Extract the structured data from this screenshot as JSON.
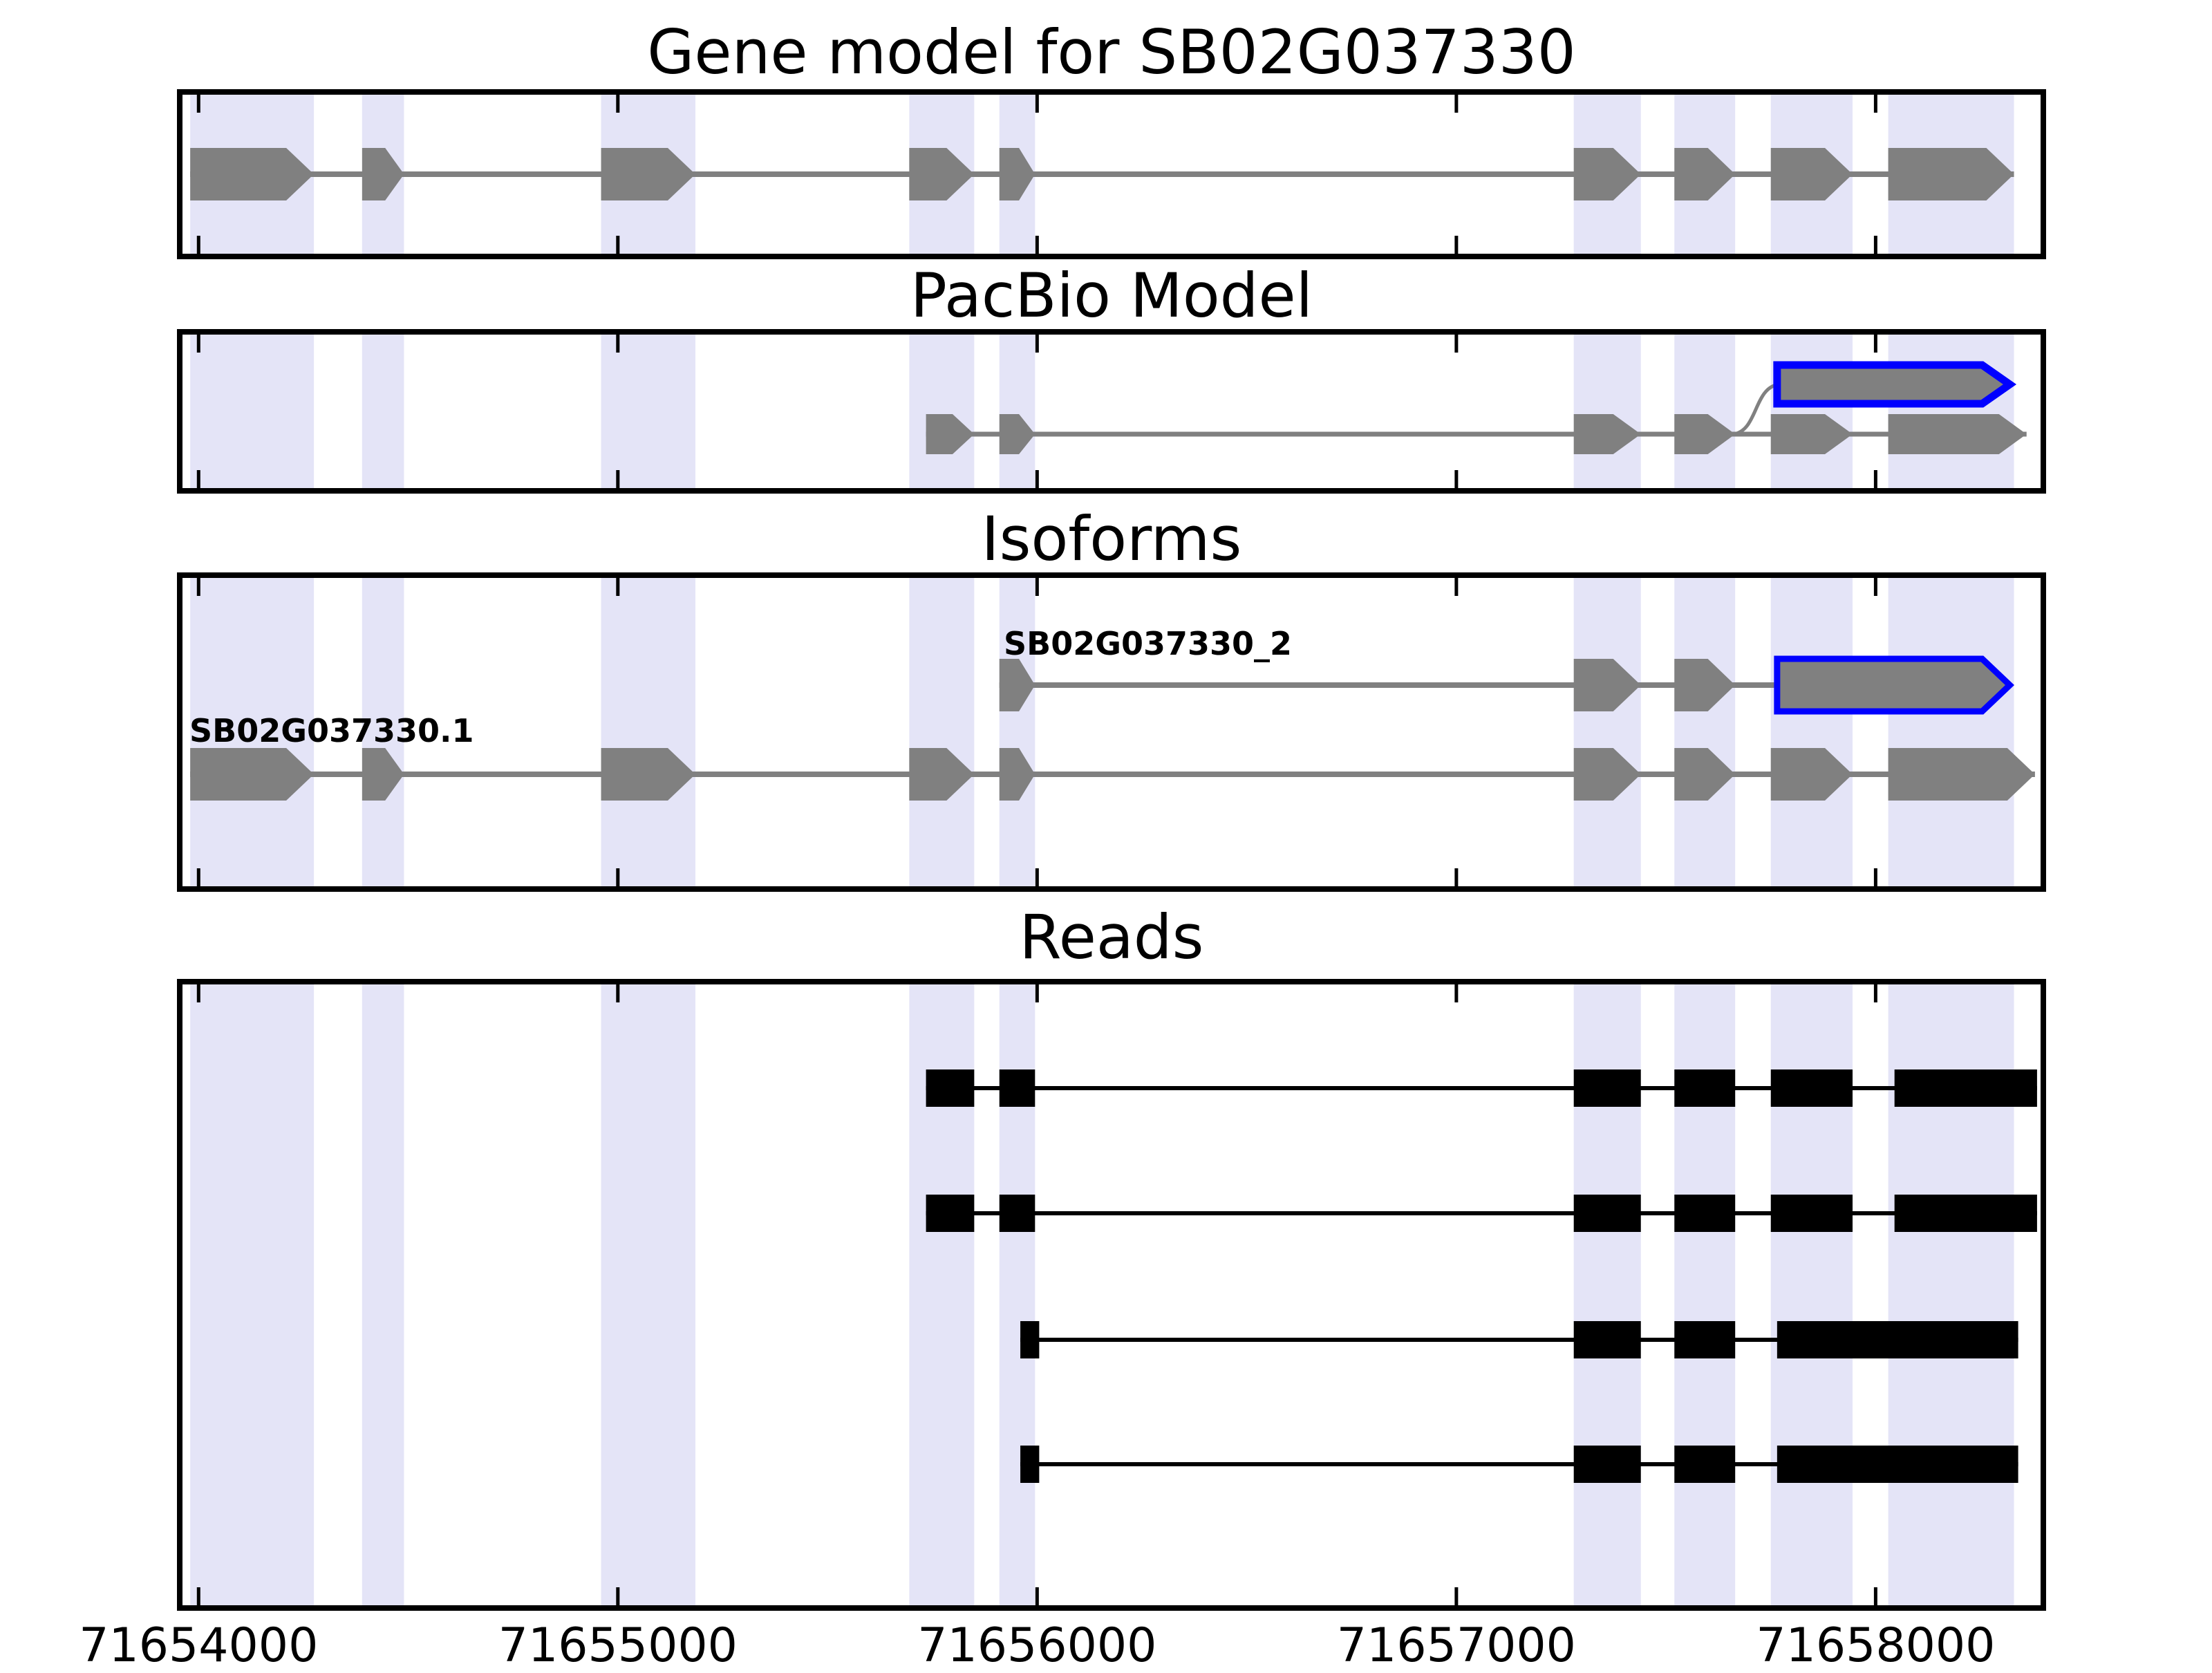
{
  "titles": {
    "gene_model": "Gene model for SB02G037330",
    "pacbio": "PacBio Model",
    "isoforms": "Isoforms",
    "reads": "Reads"
  },
  "axis": {
    "start": 71653955,
    "end": 71658400,
    "ticks": [
      {
        "value": 71654000,
        "label": "71654000"
      },
      {
        "value": 71655000,
        "label": "71655000"
      },
      {
        "value": 71656000,
        "label": "71656000"
      },
      {
        "value": 71657000,
        "label": "71657000"
      },
      {
        "value": 71658000,
        "label": "71658000"
      }
    ]
  },
  "colors": {
    "feature_gray": "#808080",
    "intron_line_gray": "#808080",
    "novel_exon_outline_blue": "#0000ff",
    "read_black": "#000000",
    "exon_highlight_band": "#e4e4f7",
    "frame": "#000000",
    "background": "#ffffff"
  },
  "chart_data": {
    "type": "genome-tracks",
    "title": "Gene model for SB02G037330",
    "coordinate_unit": "bp",
    "x_range": [
      71653955,
      71658400
    ],
    "x_ticks": [
      71654000,
      71655000,
      71656000,
      71657000,
      71658000
    ],
    "strand_direction": "right",
    "highlight_regions": [
      [
        71653980,
        71654275
      ],
      [
        71654390,
        71654490
      ],
      [
        71654960,
        71655185
      ],
      [
        71655695,
        71655850
      ],
      [
        71655910,
        71655995
      ],
      [
        71657280,
        71657440
      ],
      [
        71657520,
        71657665
      ],
      [
        71657750,
        71657945
      ],
      [
        71658030,
        71658330
      ]
    ],
    "gene_model": {
      "name": "SB02G037330",
      "exons": [
        [
          71653980,
          71654275
        ],
        [
          71654390,
          71654490
        ],
        [
          71654960,
          71655185
        ],
        [
          71655695,
          71655850
        ],
        [
          71655910,
          71655995
        ],
        [
          71657280,
          71657440
        ],
        [
          71657520,
          71657665
        ],
        [
          71657750,
          71657945
        ],
        [
          71658030,
          71658330
        ]
      ]
    },
    "pacbio_model": {
      "exons": [
        [
          71655735,
          71655850
        ],
        [
          71655910,
          71655995
        ],
        [
          71657280,
          71657440
        ],
        [
          71657520,
          71657665
        ],
        [
          71657750,
          71657945
        ],
        [
          71658030,
          71658360
        ]
      ],
      "alt_last_exon": [
        71657765,
        71658320
      ],
      "alt_connector_from": 71657660
    },
    "isoforms": [
      {
        "label": "SB02G037330_2",
        "novel_last_exon": true,
        "exons": [
          [
            71655910,
            71655995
          ],
          [
            71657280,
            71657440
          ],
          [
            71657520,
            71657665
          ],
          [
            71657765,
            71658320
          ]
        ]
      },
      {
        "label": "SB02G037330.1",
        "novel_last_exon": false,
        "exons": [
          [
            71653980,
            71654275
          ],
          [
            71654390,
            71654490
          ],
          [
            71654960,
            71655185
          ],
          [
            71655695,
            71655850
          ],
          [
            71655910,
            71655995
          ],
          [
            71657280,
            71657440
          ],
          [
            71657520,
            71657665
          ],
          [
            71657750,
            71657945
          ],
          [
            71658030,
            71658380
          ]
        ]
      }
    ],
    "reads": [
      {
        "exons": [
          [
            71655735,
            71655850
          ],
          [
            71655910,
            71655995
          ],
          [
            71657280,
            71657440
          ],
          [
            71657520,
            71657665
          ],
          [
            71657750,
            71657945
          ],
          [
            71658045,
            71658385
          ]
        ]
      },
      {
        "exons": [
          [
            71655735,
            71655850
          ],
          [
            71655910,
            71655995
          ],
          [
            71657280,
            71657440
          ],
          [
            71657520,
            71657665
          ],
          [
            71657750,
            71657945
          ],
          [
            71658045,
            71658385
          ]
        ]
      },
      {
        "exons": [
          [
            71655960,
            71656005
          ],
          [
            71657280,
            71657440
          ],
          [
            71657520,
            71657665
          ],
          [
            71657765,
            71658340
          ]
        ]
      },
      {
        "exons": [
          [
            71655960,
            71656005
          ],
          [
            71657280,
            71657440
          ],
          [
            71657520,
            71657665
          ],
          [
            71657765,
            71658340
          ]
        ]
      }
    ]
  }
}
